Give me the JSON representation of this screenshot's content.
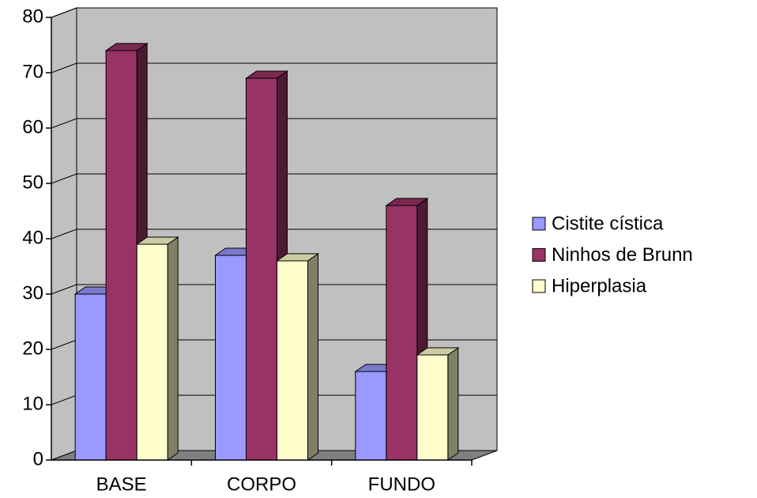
{
  "chart_data": {
    "type": "bar3d",
    "categories": [
      "BASE",
      "CORPO",
      "FUNDO"
    ],
    "series": [
      {
        "name": "Cistite cística",
        "color": "#9999ff",
        "values": [
          30,
          37,
          16
        ]
      },
      {
        "name": "Ninhos de Brunn",
        "color": "#993366",
        "values": [
          74,
          69,
          46
        ]
      },
      {
        "name": "Hiperplasia",
        "color": "#ffffcc",
        "values": [
          39,
          36,
          19
        ]
      }
    ],
    "ylim": [
      0,
      80
    ],
    "yticks": [
      0,
      10,
      20,
      30,
      40,
      50,
      60,
      70,
      80
    ],
    "grid": true,
    "legend": "right"
  }
}
